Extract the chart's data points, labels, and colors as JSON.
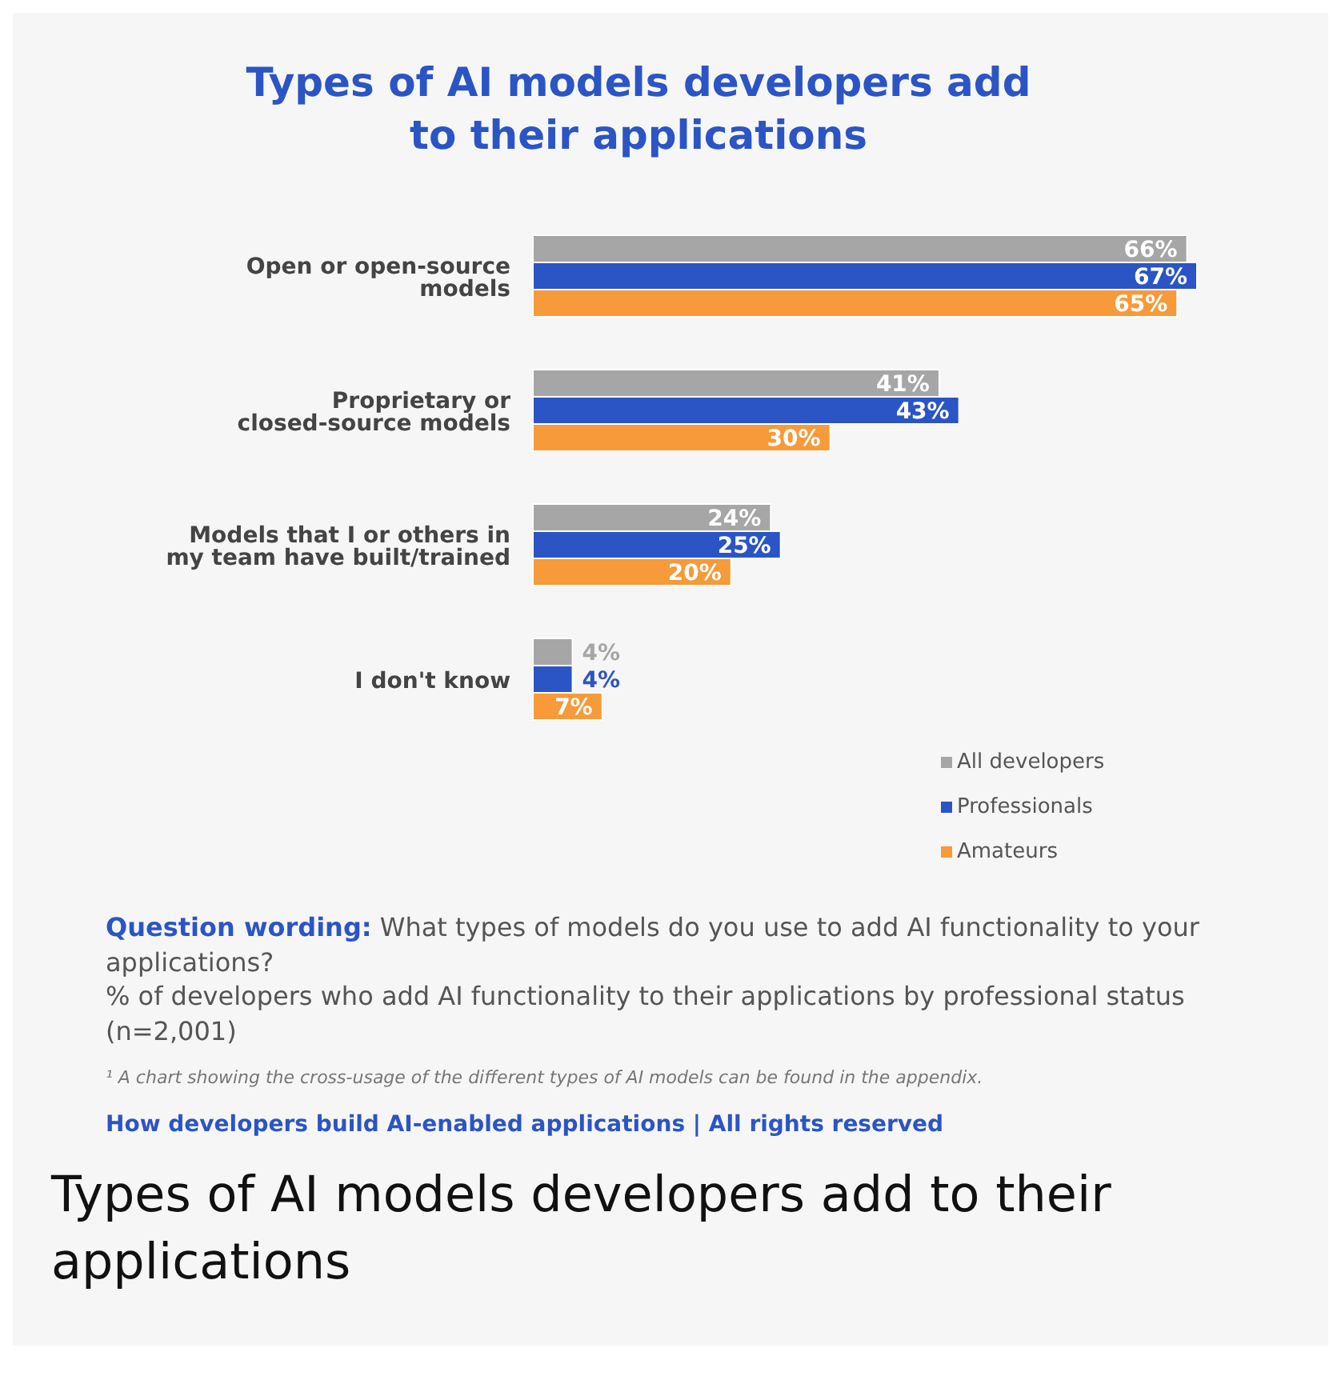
{
  "chart_data": {
    "type": "bar",
    "orientation": "horizontal",
    "title": "Types of AI models developers add to their applications",
    "categories": [
      "Open or open-source models",
      "Proprietary or closed-source models",
      "Models that I or others in my team have built/trained",
      "I don't know"
    ],
    "series": [
      {
        "name": "All developers",
        "color": "#a6a6a6",
        "values": [
          66,
          41,
          24,
          4
        ],
        "value_labels": [
          "66%",
          "41%",
          "24%",
          "4%"
        ]
      },
      {
        "name": "Professionals",
        "color": "#2b55c5",
        "values": [
          67,
          43,
          25,
          4
        ],
        "value_labels": [
          "67%",
          "43%",
          "25%",
          "4%"
        ]
      },
      {
        "name": "Amateurs",
        "color": "#f79a39",
        "values": [
          65,
          30,
          20,
          7
        ],
        "value_labels": [
          "65%",
          "30%",
          "20%",
          "7%"
        ]
      }
    ],
    "legend": "bottom right",
    "annotations": [
      "Question wording: What types of models do you use to add AI functionality to your applications?",
      "% of developers who add AI functionality to their applications by professional status (n=2,001)",
      "¹ A chart showing the cross-usage of the different types of AI models can be found in the appendix.",
      "How developers build AI-enabled applications | All rights reserved",
      "Types of AI models developers add to their applications"
    ]
  }
}
